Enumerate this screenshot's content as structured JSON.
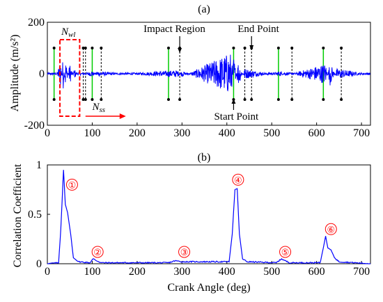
{
  "chart_data": [
    {
      "type": "line",
      "panel_label": "(a)",
      "ylabel": "Amplitude (m/s²)",
      "xlim": [
        0,
        720
      ],
      "ylim": [
        -200,
        200
      ],
      "x_ticks": [
        0,
        100,
        200,
        300,
        400,
        500,
        600,
        700
      ],
      "y_ticks": [
        200,
        0,
        -200
      ],
      "line_color": "#0000ff",
      "series": [
        {
          "values": [
            {
              "x": 0,
              "y": 0
            },
            {
              "x": 10,
              "y": 5
            },
            {
              "x": 20,
              "y": -6
            },
            {
              "x": 30,
              "y": 55
            },
            {
              "x": 35,
              "y": -70
            },
            {
              "x": 40,
              "y": 60
            },
            {
              "x": 50,
              "y": -40
            },
            {
              "x": 60,
              "y": 20
            },
            {
              "x": 70,
              "y": -8
            },
            {
              "x": 100,
              "y": 12
            },
            {
              "x": 110,
              "y": -10
            },
            {
              "x": 200,
              "y": 4
            },
            {
              "x": 290,
              "y": 14
            },
            {
              "x": 300,
              "y": -12
            },
            {
              "x": 410,
              "y": 85
            },
            {
              "x": 415,
              "y": -75
            },
            {
              "x": 425,
              "y": 50
            },
            {
              "x": 440,
              "y": -20
            },
            {
              "x": 520,
              "y": 10
            },
            {
              "x": 530,
              "y": -8
            },
            {
              "x": 620,
              "y": 40
            },
            {
              "x": 630,
              "y": -45
            },
            {
              "x": 645,
              "y": 20
            },
            {
              "x": 700,
              "y": 3
            }
          ]
        }
      ],
      "annotations": [
        {
          "label": "Impact Region",
          "x": 295
        },
        {
          "label": "End Point",
          "x": 455
        },
        {
          "label": "Start Point",
          "x": 415
        }
      ],
      "start_markers": [
        15,
        100,
        270,
        415,
        515,
        615
      ],
      "end_markers": [
        80,
        120,
        295,
        455,
        545,
        655
      ],
      "extra_markers": [
        85,
        440
      ],
      "window_box": {
        "x0": 28,
        "x1": 72,
        "label_main": "N",
        "label_sub": "wl"
      },
      "step_arrow": {
        "label_main": "N",
        "label_sub": "ss",
        "x0": 85,
        "x1": 175
      },
      "start_color": "#00cc00",
      "marker_color": "#000000",
      "box_color": "#ff0000"
    },
    {
      "type": "line",
      "panel_label": "(b)",
      "xlabel": "Crank Angle (deg)",
      "ylabel": "Correlation Coefficient",
      "xlim": [
        0,
        720
      ],
      "ylim": [
        0,
        1
      ],
      "x_ticks": [
        0,
        100,
        200,
        300,
        400,
        500,
        600,
        700
      ],
      "y_ticks": [
        1,
        0.5,
        0
      ],
      "y_tick_labels": [
        "1",
        "0.5",
        "0"
      ],
      "line_color": "#0000ff",
      "series": [
        {
          "values": [
            {
              "x": 0,
              "y": 0.0
            },
            {
              "x": 25,
              "y": 0.01
            },
            {
              "x": 30,
              "y": 0.35
            },
            {
              "x": 36,
              "y": 0.95
            },
            {
              "x": 40,
              "y": 0.6
            },
            {
              "x": 45,
              "y": 0.52
            },
            {
              "x": 52,
              "y": 0.3
            },
            {
              "x": 58,
              "y": 0.06
            },
            {
              "x": 70,
              "y": 0.02
            },
            {
              "x": 95,
              "y": 0.01
            },
            {
              "x": 102,
              "y": 0.05
            },
            {
              "x": 110,
              "y": 0.03
            },
            {
              "x": 120,
              "y": 0.01
            },
            {
              "x": 270,
              "y": 0.01
            },
            {
              "x": 285,
              "y": 0.03
            },
            {
              "x": 300,
              "y": 0.02
            },
            {
              "x": 405,
              "y": 0.02
            },
            {
              "x": 412,
              "y": 0.3
            },
            {
              "x": 418,
              "y": 0.75
            },
            {
              "x": 423,
              "y": 0.76
            },
            {
              "x": 428,
              "y": 0.3
            },
            {
              "x": 435,
              "y": 0.05
            },
            {
              "x": 445,
              "y": 0.02
            },
            {
              "x": 510,
              "y": 0.01
            },
            {
              "x": 522,
              "y": 0.05
            },
            {
              "x": 530,
              "y": 0.03
            },
            {
              "x": 540,
              "y": 0.01
            },
            {
              "x": 608,
              "y": 0.01
            },
            {
              "x": 615,
              "y": 0.16
            },
            {
              "x": 620,
              "y": 0.28
            },
            {
              "x": 625,
              "y": 0.16
            },
            {
              "x": 632,
              "y": 0.14
            },
            {
              "x": 640,
              "y": 0.06
            },
            {
              "x": 650,
              "y": 0.02
            },
            {
              "x": 720,
              "y": 0.0
            }
          ]
        }
      ],
      "peak_labels": [
        {
          "label": "①",
          "x": 55,
          "y": 0.8
        },
        {
          "label": "②",
          "x": 112,
          "y": 0.12
        },
        {
          "label": "③",
          "x": 305,
          "y": 0.12
        },
        {
          "label": "④",
          "x": 425,
          "y": 0.85
        },
        {
          "label": "⑤",
          "x": 530,
          "y": 0.12
        },
        {
          "label": "⑥",
          "x": 632,
          "y": 0.35
        }
      ]
    }
  ]
}
